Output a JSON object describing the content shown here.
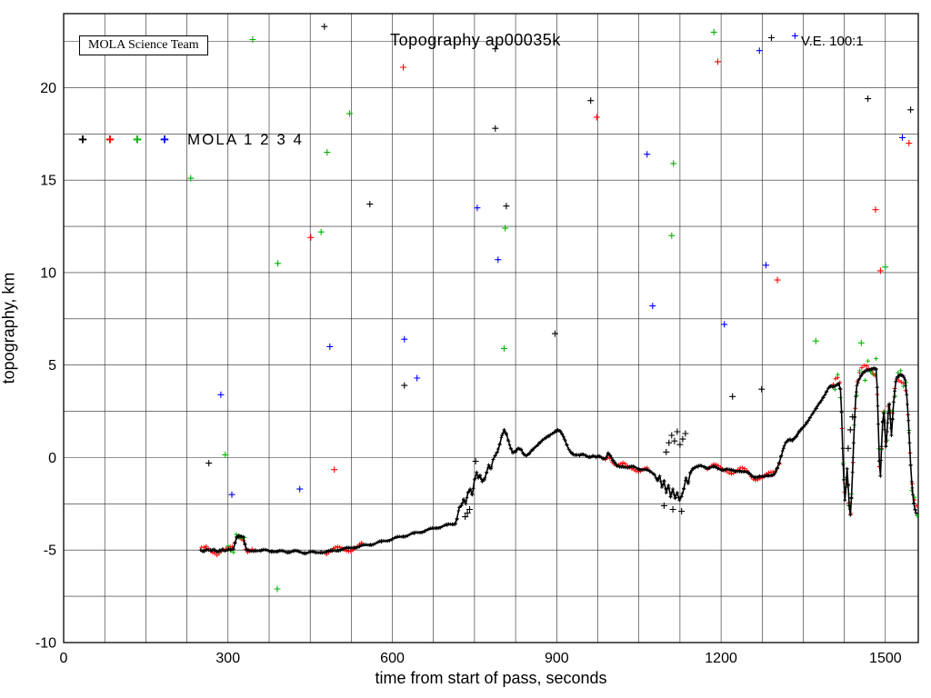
{
  "chart_data": {
    "type": "scatter",
    "title": "Topography ap00035k",
    "xlabel": "time from start of pass, seconds",
    "ylabel": "topography, km",
    "corner_label": "MOLA Science Team",
    "ve_label": "V.E. 100:1",
    "xlim": [
      0,
      1560
    ],
    "ylim": [
      -10,
      24
    ],
    "x_major_ticks": [
      0,
      300,
      600,
      900,
      1200,
      1500
    ],
    "x_grid_step": 75,
    "y_major_ticks": [
      -10,
      -5,
      0,
      5,
      10,
      15,
      20
    ],
    "y_grid_step": 2.5,
    "grid": true,
    "legend": {
      "label": "MOLA 1 2 3 4",
      "marker": "+",
      "entries": [
        "MOLA 1",
        "MOLA 2",
        "MOLA 3",
        "MOLA 4"
      ],
      "colors": [
        "#000000",
        "#ff0000",
        "#00b400",
        "#0000ff"
      ]
    },
    "colors": {
      "black": "#000000",
      "red": "#ff0000",
      "green": "#00b400",
      "blue": "#0000ff"
    },
    "profile_series": "MOLA 1 ground track",
    "profile": [
      [
        250,
        -5
      ],
      [
        255,
        -5.05
      ],
      [
        260,
        -4.95
      ],
      [
        265,
        -5
      ],
      [
        270,
        -5.05
      ],
      [
        275,
        -5
      ],
      [
        280,
        -5.1
      ],
      [
        285,
        -5
      ],
      [
        290,
        -4.95
      ],
      [
        295,
        -5.05
      ],
      [
        300,
        -5
      ],
      [
        305,
        -5
      ],
      [
        310,
        -4.95
      ],
      [
        313,
        -4.6
      ],
      [
        316,
        -4.3
      ],
      [
        320,
        -4.2
      ],
      [
        324,
        -4.25
      ],
      [
        328,
        -4.3
      ],
      [
        331,
        -4.7
      ],
      [
        334,
        -5
      ],
      [
        340,
        -5.05
      ],
      [
        350,
        -5
      ],
      [
        360,
        -5.05
      ],
      [
        370,
        -5
      ],
      [
        380,
        -5.05
      ],
      [
        390,
        -5.1
      ],
      [
        400,
        -5.05
      ],
      [
        410,
        -5.1
      ],
      [
        420,
        -5.05
      ],
      [
        430,
        -5.1
      ],
      [
        440,
        -5.15
      ],
      [
        450,
        -5.1
      ],
      [
        460,
        -5.15
      ],
      [
        470,
        -5.1
      ],
      [
        480,
        -5.1
      ],
      [
        490,
        -5.05
      ],
      [
        500,
        -5
      ],
      [
        510,
        -4.95
      ],
      [
        520,
        -4.9
      ],
      [
        530,
        -4.85
      ],
      [
        540,
        -4.8
      ],
      [
        560,
        -4.7
      ],
      [
        580,
        -4.55
      ],
      [
        600,
        -4.4
      ],
      [
        620,
        -4.25
      ],
      [
        640,
        -4.1
      ],
      [
        660,
        -3.95
      ],
      [
        680,
        -3.8
      ],
      [
        700,
        -3.65
      ],
      [
        710,
        -3.6
      ],
      [
        715,
        -3.55
      ],
      [
        718,
        -3.3
      ],
      [
        722,
        -2.7
      ],
      [
        726,
        -2.6
      ],
      [
        730,
        -2.3
      ],
      [
        734,
        -2.5
      ],
      [
        738,
        -1.9
      ],
      [
        742,
        -1.7
      ],
      [
        746,
        -2.0
      ],
      [
        750,
        -1.2
      ],
      [
        754,
        -0.8
      ],
      [
        757,
        -1.1
      ],
      [
        760,
        -1.0
      ],
      [
        764,
        -1.3
      ],
      [
        768,
        -1.2
      ],
      [
        772,
        -0.8
      ],
      [
        776,
        -0.4
      ],
      [
        780,
        -0.6
      ],
      [
        784,
        -0.1
      ],
      [
        788,
        0.1
      ],
      [
        792,
        0.3
      ],
      [
        796,
        0.7
      ],
      [
        800,
        1.2
      ],
      [
        804,
        1.5
      ],
      [
        808,
        1.3
      ],
      [
        812,
        0.9
      ],
      [
        816,
        0.5
      ],
      [
        820,
        0.25
      ],
      [
        825,
        0.3
      ],
      [
        830,
        0.5
      ],
      [
        835,
        0.45
      ],
      [
        840,
        0.2
      ],
      [
        845,
        0.1
      ],
      [
        850,
        0.2
      ],
      [
        856,
        0.4
      ],
      [
        862,
        0.6
      ],
      [
        868,
        0.8
      ],
      [
        874,
        0.95
      ],
      [
        880,
        1.05
      ],
      [
        886,
        1.15
      ],
      [
        892,
        1.3
      ],
      [
        898,
        1.45
      ],
      [
        902,
        1.5
      ],
      [
        906,
        1.45
      ],
      [
        910,
        1.25
      ],
      [
        914,
        1.0
      ],
      [
        918,
        0.7
      ],
      [
        922,
        0.45
      ],
      [
        926,
        0.3
      ],
      [
        930,
        0.2
      ],
      [
        936,
        0.15
      ],
      [
        942,
        0.1
      ],
      [
        948,
        0.15
      ],
      [
        954,
        0.1
      ],
      [
        960,
        0.05
      ],
      [
        966,
        0.1
      ],
      [
        972,
        0.0
      ],
      [
        978,
        0.05
      ],
      [
        984,
        -0.05
      ],
      [
        990,
        0.0
      ],
      [
        994,
        0.25
      ],
      [
        998,
        0.1
      ],
      [
        1002,
        -0.15
      ],
      [
        1006,
        -0.3
      ],
      [
        1010,
        -0.45
      ],
      [
        1015,
        -0.5
      ],
      [
        1020,
        -0.45
      ],
      [
        1030,
        -0.55
      ],
      [
        1040,
        -0.5
      ],
      [
        1050,
        -0.6
      ],
      [
        1060,
        -0.65
      ],
      [
        1070,
        -0.75
      ],
      [
        1078,
        -0.9
      ],
      [
        1084,
        -1.2
      ],
      [
        1088,
        -1.0
      ],
      [
        1092,
        -1.6
      ],
      [
        1096,
        -1.3
      ],
      [
        1100,
        -1.9
      ],
      [
        1104,
        -1.5
      ],
      [
        1108,
        -2.1
      ],
      [
        1112,
        -1.7
      ],
      [
        1116,
        -2.2
      ],
      [
        1120,
        -1.9
      ],
      [
        1124,
        -2.3
      ],
      [
        1128,
        -2.1
      ],
      [
        1132,
        -1.7
      ],
      [
        1136,
        -1.1
      ],
      [
        1140,
        -1.4
      ],
      [
        1144,
        -0.8
      ],
      [
        1148,
        -0.6
      ],
      [
        1152,
        -0.55
      ],
      [
        1158,
        -0.5
      ],
      [
        1164,
        -0.45
      ],
      [
        1170,
        -0.5
      ],
      [
        1178,
        -0.55
      ],
      [
        1186,
        -0.5
      ],
      [
        1194,
        -0.6
      ],
      [
        1202,
        -0.65
      ],
      [
        1210,
        -0.6
      ],
      [
        1218,
        -0.7
      ],
      [
        1226,
        -0.75
      ],
      [
        1234,
        -0.7
      ],
      [
        1242,
        -0.75
      ],
      [
        1250,
        -0.85
      ],
      [
        1256,
        -1.0
      ],
      [
        1262,
        -1.05
      ],
      [
        1270,
        -1.0
      ],
      [
        1278,
        -1.05
      ],
      [
        1286,
        -1.0
      ],
      [
        1292,
        -0.95
      ],
      [
        1298,
        -0.85
      ],
      [
        1302,
        -0.6
      ],
      [
        1306,
        -0.3
      ],
      [
        1310,
        0.1
      ],
      [
        1314,
        0.5
      ],
      [
        1318,
        0.8
      ],
      [
        1322,
        0.95
      ],
      [
        1326,
        1.0
      ],
      [
        1330,
        0.95
      ],
      [
        1334,
        1.05
      ],
      [
        1338,
        1.15
      ],
      [
        1342,
        1.35
      ],
      [
        1346,
        1.5
      ],
      [
        1350,
        1.65
      ],
      [
        1356,
        1.9
      ],
      [
        1362,
        2.15
      ],
      [
        1368,
        2.4
      ],
      [
        1374,
        2.65
      ],
      [
        1380,
        2.95
      ],
      [
        1386,
        3.25
      ],
      [
        1392,
        3.55
      ],
      [
        1396,
        3.75
      ],
      [
        1400,
        3.85
      ],
      [
        1404,
        3.8
      ],
      [
        1408,
        3.85
      ],
      [
        1412,
        3.95
      ],
      [
        1415,
        4.0
      ],
      [
        1418,
        3.7
      ],
      [
        1420,
        2.5
      ],
      [
        1422,
        0.5
      ],
      [
        1424,
        -1.2
      ],
      [
        1426,
        -2.3
      ],
      [
        1428,
        -1.6
      ],
      [
        1430,
        -0.6
      ],
      [
        1432,
        -1.5
      ],
      [
        1434,
        -2.6
      ],
      [
        1436,
        -3.1
      ],
      [
        1438,
        -2.2
      ],
      [
        1440,
        -0.8
      ],
      [
        1442,
        0.8
      ],
      [
        1444,
        2.2
      ],
      [
        1446,
        3.3
      ],
      [
        1448,
        3.9
      ],
      [
        1451,
        4.2
      ],
      [
        1455,
        4.4
      ],
      [
        1459,
        4.55
      ],
      [
        1463,
        4.65
      ],
      [
        1467,
        4.7
      ],
      [
        1471,
        4.75
      ],
      [
        1475,
        4.8
      ],
      [
        1479,
        4.85
      ],
      [
        1483,
        4.8
      ],
      [
        1485,
        3.8
      ],
      [
        1487,
        1.8
      ],
      [
        1489,
        -0.2
      ],
      [
        1491,
        -1.0
      ],
      [
        1493,
        0.6
      ],
      [
        1495,
        1.9
      ],
      [
        1497,
        2.4
      ],
      [
        1499,
        1.5
      ],
      [
        1501,
        0.6
      ],
      [
        1503,
        1.4
      ],
      [
        1505,
        2.4
      ],
      [
        1507,
        2.9
      ],
      [
        1509,
        2.1
      ],
      [
        1511,
        1.2
      ],
      [
        1513,
        2.1
      ],
      [
        1515,
        3.0
      ],
      [
        1517,
        3.6
      ],
      [
        1519,
        4.1
      ],
      [
        1521,
        4.3
      ],
      [
        1525,
        4.4
      ],
      [
        1529,
        4.45
      ],
      [
        1533,
        4.4
      ],
      [
        1536,
        4.2
      ],
      [
        1539,
        3.4
      ],
      [
        1542,
        2.0
      ],
      [
        1544,
        0.8
      ],
      [
        1546,
        -0.4
      ],
      [
        1548,
        -1.3
      ],
      [
        1550,
        -2.0
      ],
      [
        1552,
        -2.5
      ],
      [
        1554,
        -2.8
      ],
      [
        1556,
        -3.0
      ]
    ],
    "channel_overlays": [
      {
        "name": "MOLA 2 returns",
        "color": "#ff0000",
        "step": 4,
        "amp": 0.18,
        "ranges": [
          [
            252,
            345
          ],
          [
            480,
            545
          ],
          [
            985,
            1065
          ],
          [
            1175,
            1310
          ],
          [
            1405,
            1560
          ]
        ]
      },
      {
        "name": "MOLA 3 returns",
        "color": "#00b400",
        "step": 5,
        "amp": 0.25,
        "ranges": [
          [
            300,
            332
          ],
          [
            1408,
            1560
          ]
        ]
      }
    ],
    "noise_points": [
      [
        345,
        22.6,
        2
      ],
      [
        476,
        23.3,
        0
      ],
      [
        620,
        21.1,
        1
      ],
      [
        788,
        22.1,
        0
      ],
      [
        788,
        17.8,
        0
      ],
      [
        962,
        19.3,
        0
      ],
      [
        973,
        18.4,
        1
      ],
      [
        1187,
        23.0,
        2
      ],
      [
        1194,
        21.4,
        1
      ],
      [
        1270,
        22.0,
        3
      ],
      [
        1292,
        22.7,
        0
      ],
      [
        1335,
        22.8,
        3
      ],
      [
        1546,
        18.8,
        0
      ],
      [
        1531,
        17.3,
        3
      ],
      [
        1543,
        17.0,
        1
      ],
      [
        232,
        15.1,
        2
      ],
      [
        391,
        10.5,
        2
      ],
      [
        451,
        11.9,
        1
      ],
      [
        470,
        12.2,
        2
      ],
      [
        559,
        13.7,
        0
      ],
      [
        486,
        6.0,
        3
      ],
      [
        804,
        5.9,
        2
      ],
      [
        806,
        12.4,
        2
      ],
      [
        808,
        13.6,
        0
      ],
      [
        793,
        10.7,
        3
      ],
      [
        897,
        6.7,
        0
      ],
      [
        1075,
        8.2,
        3
      ],
      [
        1110,
        12.0,
        2
      ],
      [
        1065,
        16.4,
        3
      ],
      [
        1113,
        15.9,
        2
      ],
      [
        1206,
        7.2,
        3
      ],
      [
        1221,
        3.3,
        0
      ],
      [
        1274,
        3.7,
        0
      ],
      [
        1282,
        10.4,
        3
      ],
      [
        1303,
        9.6,
        1
      ],
      [
        1373,
        6.3,
        2
      ],
      [
        1482,
        13.4,
        1
      ],
      [
        1468,
        19.4,
        0
      ],
      [
        1491,
        10.1,
        1
      ],
      [
        1500,
        10.3,
        2
      ],
      [
        390,
        -7.1,
        2
      ],
      [
        431,
        -1.7,
        3
      ],
      [
        494,
        -0.65,
        1
      ],
      [
        307,
        -2.0,
        3
      ],
      [
        265,
        -0.3,
        0
      ],
      [
        622,
        3.9,
        0
      ],
      [
        645,
        4.3,
        3
      ],
      [
        622,
        6.4,
        3
      ],
      [
        522,
        18.6,
        2
      ],
      [
        755,
        13.5,
        3
      ],
      [
        481,
        16.5,
        2
      ],
      [
        295,
        0.15,
        2
      ],
      [
        1456,
        6.2,
        2
      ],
      [
        287,
        3.4,
        3
      ],
      [
        733,
        -3.2,
        0
      ],
      [
        737,
        -3.0,
        0
      ],
      [
        741,
        -2.8,
        0
      ],
      [
        752,
        -0.2,
        0
      ],
      [
        1100,
        0.3,
        0
      ],
      [
        1105,
        0.8,
        0
      ],
      [
        1110,
        1.2,
        0
      ],
      [
        1115,
        0.9,
        0
      ],
      [
        1120,
        1.4,
        0
      ],
      [
        1125,
        0.7,
        0
      ],
      [
        1130,
        1.0,
        0
      ],
      [
        1135,
        1.3,
        0
      ],
      [
        1096,
        -2.6,
        0
      ],
      [
        1112,
        -2.8,
        0
      ],
      [
        1128,
        -2.9,
        0
      ],
      [
        1432,
        0.5,
        0
      ],
      [
        1436,
        1.5,
        0
      ],
      [
        1440,
        2.2,
        0
      ]
    ]
  }
}
